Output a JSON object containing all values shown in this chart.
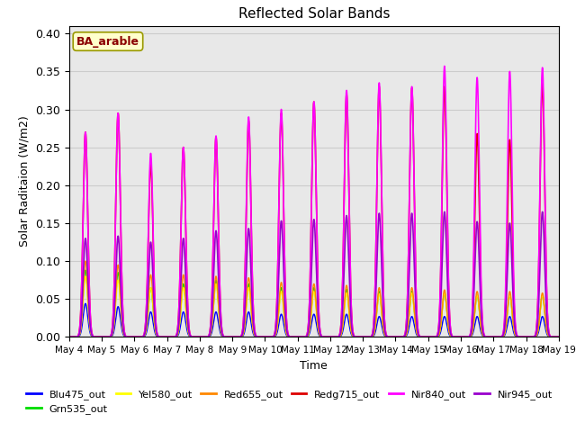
{
  "title": "Reflected Solar Bands",
  "xlabel": "Time",
  "ylabel": "Solar Raditaion (W/m2)",
  "annotation_text": "BA_arable",
  "ylim": [
    0.0,
    0.41
  ],
  "num_days": 15,
  "tick_labels": [
    "May 4",
    "May 5",
    "May 6",
    "May 7",
    "May 8",
    "May 9",
    "May 10",
    "May 11",
    "May 12",
    "May 13",
    "May 14",
    "May 15",
    "May 16",
    "May 17",
    "May 18",
    "May 19"
  ],
  "day_peaks": {
    "Blu475_out": [
      0.044,
      0.04,
      0.033,
      0.033,
      0.033,
      0.033,
      0.03,
      0.03,
      0.03,
      0.027,
      0.027,
      0.027,
      0.027,
      0.027,
      0.027
    ],
    "Grn535_out": [
      0.088,
      0.085,
      0.065,
      0.07,
      0.075,
      0.07,
      0.065,
      0.065,
      0.063,
      0.06,
      0.06,
      0.058,
      0.055,
      0.055,
      0.055
    ],
    "Yel580_out": [
      0.08,
      0.075,
      0.065,
      0.065,
      0.07,
      0.065,
      0.06,
      0.06,
      0.058,
      0.057,
      0.058,
      0.058,
      0.055,
      0.055,
      0.055
    ],
    "Red655_out": [
      0.1,
      0.095,
      0.082,
      0.082,
      0.08,
      0.078,
      0.072,
      0.07,
      0.068,
      0.065,
      0.065,
      0.062,
      0.06,
      0.06,
      0.058
    ],
    "Redg715_out": [
      0.27,
      0.295,
      0.228,
      0.25,
      0.263,
      0.285,
      0.295,
      0.31,
      0.32,
      0.33,
      0.328,
      0.33,
      0.268,
      0.26,
      0.335
    ],
    "Nir840_out": [
      0.27,
      0.295,
      0.242,
      0.25,
      0.265,
      0.29,
      0.3,
      0.31,
      0.325,
      0.335,
      0.33,
      0.357,
      0.342,
      0.35,
      0.355
    ],
    "Nir945_out": [
      0.13,
      0.133,
      0.125,
      0.13,
      0.14,
      0.143,
      0.153,
      0.155,
      0.16,
      0.163,
      0.163,
      0.165,
      0.152,
      0.15,
      0.165
    ]
  },
  "series_order": [
    "Blu475_out",
    "Grn535_out",
    "Yel580_out",
    "Red655_out",
    "Redg715_out",
    "Nir840_out",
    "Nir945_out"
  ],
  "legend_colors": {
    "Blu475_out": "#0000ff",
    "Grn535_out": "#00dd00",
    "Yel580_out": "#ffff00",
    "Red655_out": "#ff8800",
    "Redg715_out": "#dd0000",
    "Nir840_out": "#ff00ff",
    "Nir945_out": "#9900cc"
  },
  "grid_color": "#cccccc",
  "bg_color": "#e8e8e8"
}
